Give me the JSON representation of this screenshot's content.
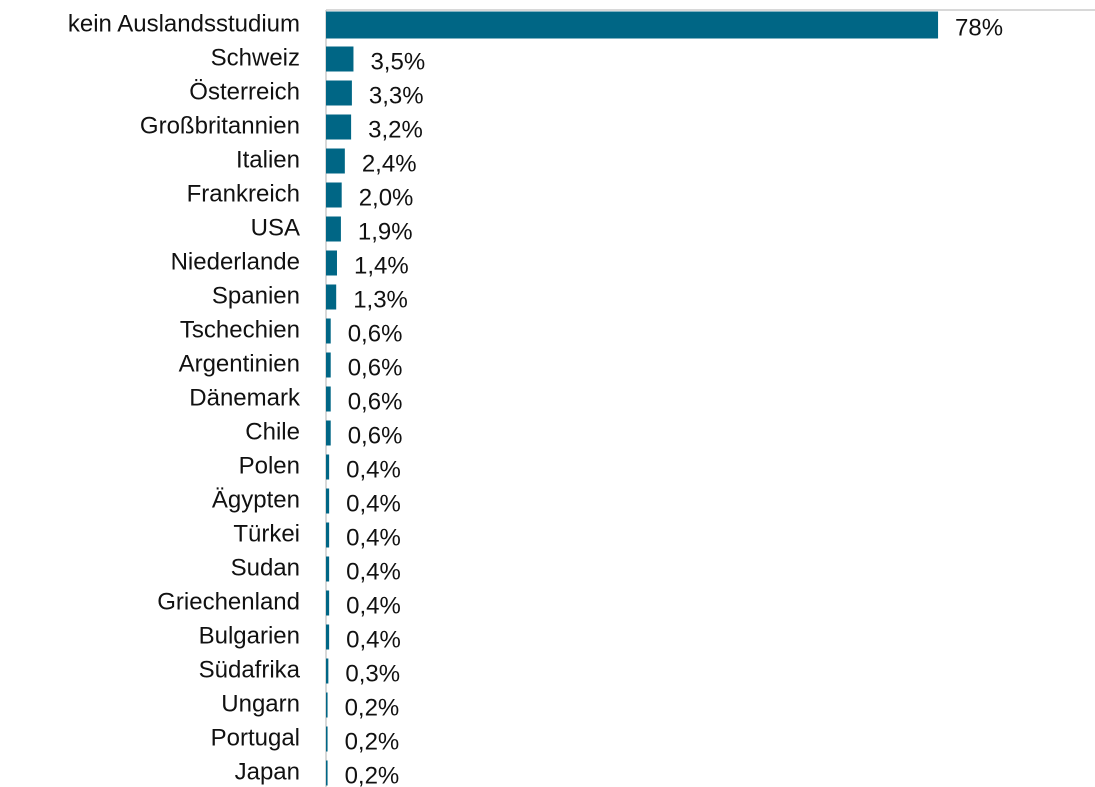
{
  "chart_data": {
    "type": "barh",
    "categories": [
      "kein Auslandsstudium",
      "Schweiz",
      "Österreich",
      "Großbritannien",
      "Italien",
      "Frankreich",
      "USA",
      "Niederlande",
      "Spanien",
      "Tschechien",
      "Argentinien",
      "Dänemark",
      "Chile",
      "Polen",
      "Ägypten",
      "Türkei",
      "Sudan",
      "Griechenland",
      "Bulgarien",
      "Südafrika",
      "Ungarn",
      "Portugal",
      "Japan"
    ],
    "values": [
      78,
      3.5,
      3.3,
      3.2,
      2.4,
      2.0,
      1.9,
      1.4,
      1.3,
      0.6,
      0.6,
      0.6,
      0.6,
      0.4,
      0.4,
      0.4,
      0.4,
      0.4,
      0.4,
      0.3,
      0.2,
      0.2,
      0.2
    ],
    "value_labels": [
      "78%",
      "3,5%",
      "3,3%",
      "3,2%",
      "2,4%",
      "2,0%",
      "1,9%",
      "1,4%",
      "1,3%",
      "0,6%",
      "0,6%",
      "0,6%",
      "0,6%",
      "0,4%",
      "0,4%",
      "0,4%",
      "0,4%",
      "0,4%",
      "0,4%",
      "0,3%",
      "0,2%",
      "0,2%",
      "0,2%"
    ],
    "color": "#006685",
    "xlim": [
      0,
      98
    ]
  }
}
